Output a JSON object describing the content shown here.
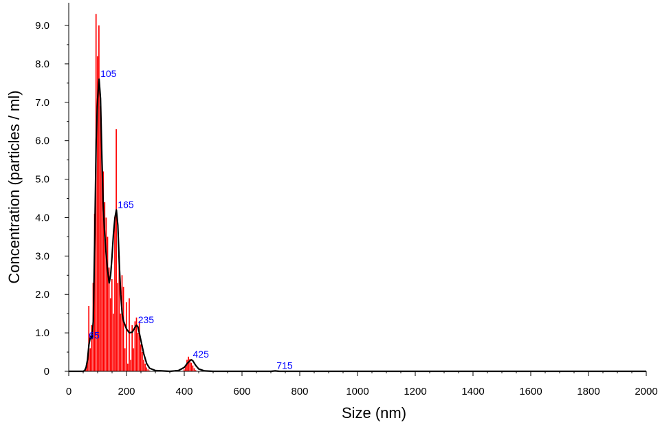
{
  "chart_data": {
    "type": "bar",
    "xlabel": "Size (nm)",
    "ylabel": "Concentration (particles / ml)",
    "xlim": [
      0,
      2000
    ],
    "ylim": [
      0,
      9.3
    ],
    "x_ticks": [
      "0",
      "200",
      "400",
      "600",
      "800",
      "1000",
      "1200",
      "1400",
      "1600",
      "1800",
      "2000"
    ],
    "y_ticks": [
      "0",
      "1.0",
      "2.0",
      "3.0",
      "4.0",
      "5.0",
      "6.0",
      "7.0",
      "8.0",
      "9.0"
    ],
    "grid": false,
    "colors": {
      "histogram": "#ff0000",
      "curve": "#000000",
      "annotations": "#0000ff"
    },
    "histogram": {
      "x": [
        60,
        65,
        70,
        75,
        80,
        85,
        90,
        95,
        100,
        105,
        110,
        115,
        120,
        125,
        130,
        135,
        140,
        145,
        150,
        155,
        160,
        165,
        170,
        175,
        180,
        185,
        190,
        195,
        200,
        205,
        210,
        215,
        220,
        225,
        230,
        235,
        240,
        245,
        250,
        255,
        260,
        265,
        270,
        275,
        280,
        400,
        405,
        410,
        415,
        420,
        425,
        430,
        435,
        440
      ],
      "values": [
        0.1,
        0.3,
        1.7,
        0.6,
        1.2,
        2.3,
        4.1,
        9.3,
        8.2,
        9.0,
        6.9,
        5.6,
        5.2,
        4.4,
        4.0,
        3.5,
        2.7,
        1.9,
        2.4,
        1.5,
        4.0,
        6.3,
        2.3,
        3.0,
        1.5,
        2.5,
        2.2,
        0.6,
        1.8,
        0.2,
        1.9,
        0.3,
        1.2,
        0.6,
        1.3,
        1.4,
        1.0,
        1.3,
        0.7,
        0.5,
        0.3,
        0.2,
        0.1,
        0.05,
        0.02,
        0.05,
        0.15,
        0.3,
        0.38,
        0.32,
        0.22,
        0.15,
        0.08,
        0.03
      ]
    },
    "series": [
      {
        "x": [
          0,
          50,
          55,
          60,
          65,
          70,
          75,
          80,
          85,
          90,
          95,
          100,
          105,
          110,
          115,
          120,
          125,
          130,
          135,
          140,
          145,
          150,
          155,
          160,
          165,
          170,
          175,
          180,
          185,
          190,
          195,
          200,
          205,
          210,
          220,
          230,
          235,
          240,
          250,
          260,
          270,
          280,
          300,
          350,
          380,
          400,
          410,
          420,
          425,
          430,
          440,
          450,
          470,
          500,
          600,
          700,
          715,
          730,
          800,
          1000,
          2000
        ],
        "values": [
          0,
          0,
          0.02,
          0.1,
          0.3,
          0.7,
          0.9,
          0.85,
          1.3,
          3.5,
          6.0,
          7.1,
          7.6,
          7.1,
          5.5,
          4.2,
          3.5,
          3.0,
          2.6,
          2.3,
          2.5,
          3.0,
          3.6,
          4.0,
          4.2,
          3.8,
          2.8,
          2.0,
          1.5,
          1.3,
          1.2,
          1.1,
          1.05,
          1.0,
          1.02,
          1.15,
          1.2,
          1.15,
          0.8,
          0.45,
          0.2,
          0.08,
          0.02,
          0,
          0.02,
          0.1,
          0.2,
          0.28,
          0.3,
          0.27,
          0.15,
          0.06,
          0.01,
          0,
          0,
          0,
          0.01,
          0,
          0,
          0,
          0
        ]
      }
    ],
    "annotations": [
      {
        "text": "65",
        "x": 65,
        "y": 0.8
      },
      {
        "text": "105",
        "x": 105,
        "y": 7.6
      },
      {
        "text": "165",
        "x": 165,
        "y": 4.2
      },
      {
        "text": "235",
        "x": 235,
        "y": 1.2
      },
      {
        "text": "425",
        "x": 425,
        "y": 0.3
      },
      {
        "text": "715",
        "x": 715,
        "y": 0.01
      }
    ]
  }
}
